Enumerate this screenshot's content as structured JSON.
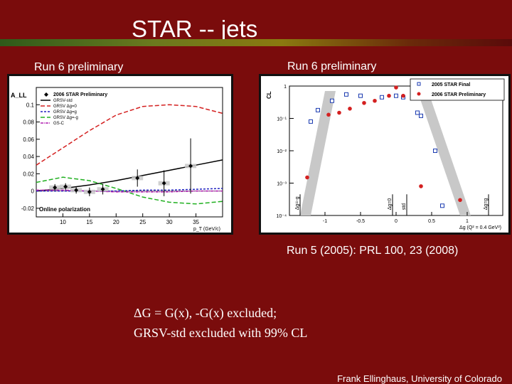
{
  "slide": {
    "title": "STAR -- jets",
    "left_label": "Run 6 preliminary",
    "right_label": "Run 6 preliminary",
    "reference": "Run 5 (2005): PRL 100, 23 (2008)",
    "body_line1": "ΔG = G(x), -G(x) excluded;",
    "body_line2": "GRSV-std excluded with 99% CL",
    "footer": "Frank Ellinghaus, University of Colorado"
  },
  "chart_data": [
    {
      "type": "line",
      "ylabel": "A_LL",
      "xlabel": "p_T (GeV/c)",
      "legend_position": "top-right",
      "legend": [
        "2006 STAR Preliminary",
        "GRSV-std",
        "GRSV Δg=0",
        "GRSV Δg=g",
        "GRSV Δg=-g",
        "GS-C"
      ],
      "annotation": "Online polarization",
      "x_ticks": [
        "10",
        "15",
        "20",
        "25",
        "30",
        "35"
      ],
      "y_ticks": [
        "-0.02",
        "0",
        "0.02",
        "0.04",
        "0.06",
        "0.08",
        "0.1"
      ],
      "xlim": [
        5,
        40
      ],
      "ylim": [
        -0.03,
        0.12
      ],
      "colors": {
        "data": "#000000",
        "grsv_std": "#000000",
        "grsv_max": "#d42020",
        "grsv_zero": "#2020c0",
        "grsv_min": "#20b020",
        "gsc": "#b020b0"
      },
      "series": [
        {
          "name": "2006 STAR Preliminary",
          "x": [
            8.5,
            10.5,
            12.5,
            15.0,
            17.5,
            24.0,
            29.0,
            34.0
          ],
          "y": [
            0.004,
            0.005,
            0.001,
            -0.001,
            0.002,
            0.015,
            0.009,
            0.029
          ],
          "err": [
            0.004,
            0.004,
            0.004,
            0.005,
            0.006,
            0.01,
            0.015,
            0.032
          ]
        },
        {
          "name": "GRSV-std",
          "x": [
            5,
            10,
            15,
            20,
            25,
            30,
            35,
            40
          ],
          "y": [
            0.0,
            0.003,
            0.007,
            0.012,
            0.018,
            0.024,
            0.03,
            0.036
          ]
        },
        {
          "name": "GRSV Δg=g",
          "x": [
            5,
            10,
            15,
            20,
            25,
            30,
            35,
            40
          ],
          "y": [
            0.03,
            0.05,
            0.07,
            0.088,
            0.098,
            0.1,
            0.098,
            0.09
          ]
        },
        {
          "name": "GRSV Δg=0",
          "x": [
            5,
            10,
            15,
            20,
            25,
            30,
            35,
            40
          ],
          "y": [
            0.0,
            0.0,
            0.0,
            0.0,
            0.001,
            0.001,
            0.002,
            0.003
          ]
        },
        {
          "name": "GRSV Δg=-g",
          "x": [
            5,
            10,
            15,
            20,
            25,
            30,
            35,
            40
          ],
          "y": [
            0.01,
            0.016,
            0.012,
            0.003,
            -0.007,
            -0.013,
            -0.015,
            -0.012
          ]
        },
        {
          "name": "GS-C",
          "x": [
            5,
            10,
            15,
            20,
            25,
            30,
            35,
            40
          ],
          "y": [
            0.001,
            0.001,
            0.0,
            -0.001,
            -0.001,
            -0.001,
            0.0,
            0.0
          ]
        }
      ]
    },
    {
      "type": "scatter",
      "ylabel": "CL",
      "xlabel": "Δg (Q² = 0.4 GeV²)",
      "log_y": true,
      "legend_position": "top-right",
      "legend": [
        "2005 STAR Final",
        "2006 STAR Preliminary"
      ],
      "x_ticks": [
        "-1",
        "-0.5",
        "0",
        "0.5",
        "1"
      ],
      "y_ticks": [
        "10⁻⁴",
        "10⁻³",
        "10⁻²",
        "10⁻¹",
        "1"
      ],
      "vertical_labels": [
        "Δg=-g",
        "Δg=0",
        "std",
        "Δg=g"
      ],
      "xlim": [
        -1.5,
        1.5
      ],
      "ylim": [
        0.0001,
        1
      ],
      "colors": {
        "final": "#1a3ab0",
        "preliminary": "#d42020"
      },
      "series": [
        {
          "name": "2005 STAR Final",
          "x": [
            -1.2,
            -1.1,
            -0.9,
            -0.7,
            -0.5,
            -0.2,
            0.0,
            0.1,
            0.3,
            0.35,
            0.55,
            0.65
          ],
          "y": [
            0.08,
            0.18,
            0.35,
            0.55,
            0.5,
            0.45,
            0.5,
            0.45,
            0.15,
            0.12,
            0.01,
            0.0002
          ]
        },
        {
          "name": "2006 STAR Preliminary",
          "x": [
            -1.25,
            -0.95,
            -0.8,
            -0.65,
            -0.45,
            -0.3,
            -0.1,
            0.0,
            0.1,
            0.35,
            0.9
          ],
          "y": [
            0.0015,
            0.13,
            0.15,
            0.2,
            0.3,
            0.35,
            0.5,
            0.9,
            0.5,
            0.0008,
            0.0003
          ]
        }
      ]
    }
  ]
}
